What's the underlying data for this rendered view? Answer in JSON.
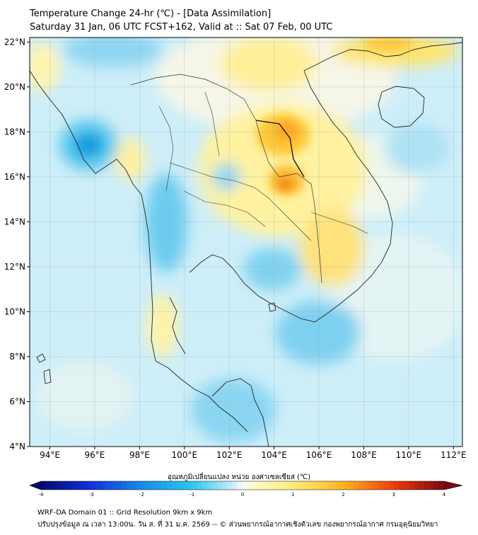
{
  "title": {
    "line1": "Temperature Change 24-hr (℃) - [Data Assimilation]",
    "line2": "Saturday 31 Jan, 06 UTC FCST+162, Valid at :: Sat 07 Feb, 00 UTC"
  },
  "axes": {
    "lat_labels": [
      "22°N",
      "20°N",
      "18°N",
      "16°N",
      "14°N",
      "12°N",
      "10°N",
      "8°N",
      "6°N",
      "4°N"
    ],
    "lon_labels": [
      "94°E",
      "96°E",
      "98°E",
      "100°E",
      "102°E",
      "104°E",
      "106°E",
      "108°E",
      "110°E",
      "112°E"
    ],
    "lat_range": [
      4,
      22.2
    ],
    "lon_range": [
      93.1,
      112.4
    ]
  },
  "colorbar": {
    "label": "อุณหภูมิเปลี่ยนแปลง หน่วย องศาเซลเซียส (℃)",
    "ticks": [
      "-4",
      "-3",
      "-2",
      "-1",
      "0",
      "1",
      "2",
      "3",
      "4"
    ],
    "range": [
      -4,
      4
    ]
  },
  "footer": {
    "line1": "WRF-DA Domain 01 :: Grid Resolution 9km x 9km",
    "line2": "ปรับปรุงข้อมูล ณ เวลา 13:00น. วัน ส. ที่ 31 ม.ค. 2569 -- © ส่วนพยากรณ์อากาศเชิงตัวเลข กองพยากรณ์อากาศ กรมอุตุนิยมวิทยา"
  },
  "colors": {
    "cold_strong": "#0f8fd8",
    "cold": "#4fc3ec",
    "cool": "#a8e2f5",
    "neutral": "#f4f8f6",
    "warm": "#fff2a0",
    "warmer": "#ffd640",
    "hot": "#ff9a10",
    "hottest": "#e85010"
  }
}
